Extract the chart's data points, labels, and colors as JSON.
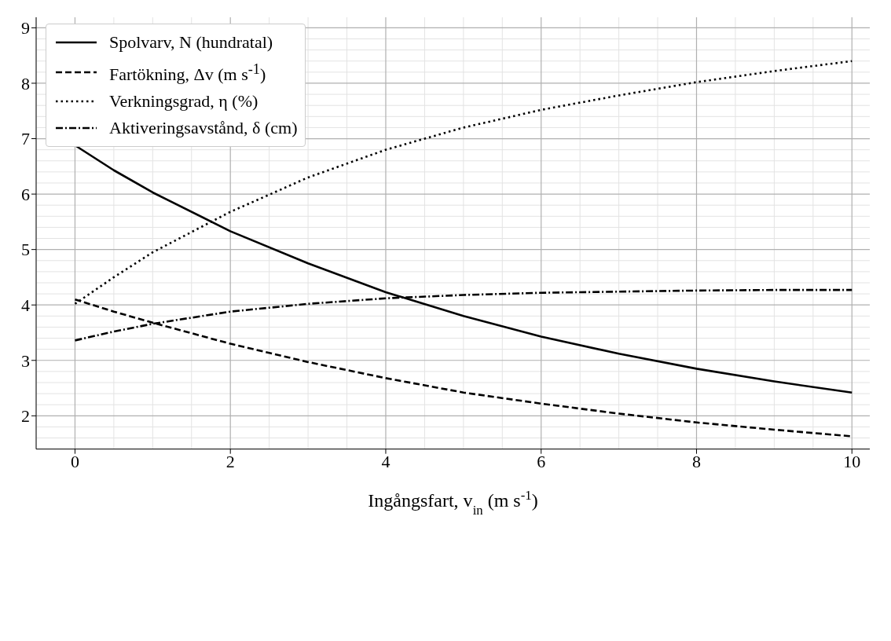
{
  "chart_data": {
    "type": "line",
    "xlabel": "Ingångsfart, v$_{in}$ (m s$^{-1}$)",
    "x": [
      0,
      0.5,
      1,
      2,
      3,
      4,
      5,
      6,
      7,
      8,
      9,
      10
    ],
    "series": [
      {
        "name": "Spolvarv, N (hundratal)",
        "color": "#000000",
        "line_style": "solid",
        "values": [
          6.88,
          6.43,
          6.03,
          5.33,
          4.75,
          4.23,
          3.8,
          3.43,
          3.12,
          2.85,
          2.62,
          2.42
        ]
      },
      {
        "name": "Fartökning, Δv (m s$^{-1}$)",
        "color": "#000000",
        "line_style": "dashed",
        "values": [
          4.1,
          3.88,
          3.68,
          3.3,
          2.97,
          2.68,
          2.42,
          2.22,
          2.04,
          1.88,
          1.75,
          1.63
        ]
      },
      {
        "name": "Verkningsgrad, η (%)",
        "color": "#000000",
        "line_style": "dotted",
        "values": [
          4.02,
          4.5,
          4.95,
          5.68,
          6.3,
          6.8,
          7.2,
          7.52,
          7.78,
          8.02,
          8.22,
          8.4
        ]
      },
      {
        "name": "Aktiveringsavstånd, δ (cm)",
        "color": "#000000",
        "line_style": "dashdot",
        "values": [
          3.36,
          3.52,
          3.66,
          3.88,
          4.02,
          4.12,
          4.18,
          4.22,
          4.24,
          4.26,
          4.27,
          4.27
        ]
      }
    ],
    "xlim": [
      -0.5,
      10.23
    ],
    "xticks": [
      0,
      2,
      4,
      6,
      8,
      10
    ],
    "ylim": [
      1.4,
      9.19
    ],
    "yticks": [
      2,
      3,
      4,
      5,
      6,
      7,
      8,
      9
    ],
    "grid": true,
    "legend": "top left",
    "marker": "none"
  }
}
